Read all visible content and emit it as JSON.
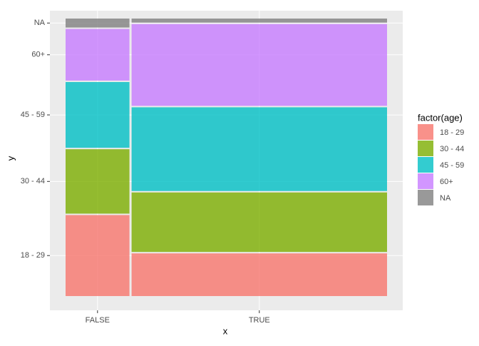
{
  "chart_data": {
    "type": "mosaic",
    "x_label": "x",
    "y_label": "y",
    "legend_title": "factor(age)",
    "categories": [
      "FALSE",
      "TRUE"
    ],
    "category_shares": [
      20,
      80
    ],
    "series": [
      {
        "name": "18 - 29",
        "color": "#F8766D",
        "values": [
          29.8,
          15.7
        ]
      },
      {
        "name": "30 - 44",
        "color": "#7CAE00",
        "values": [
          23.7,
          21.9
        ]
      },
      {
        "name": "45 - 59",
        "color": "#00BFC4",
        "values": [
          24.2,
          30.8
        ]
      },
      {
        "name": "60+",
        "color": "#C77CFF",
        "values": [
          19.0,
          30.1
        ]
      },
      {
        "name": "NA",
        "color": "#7F7F7F",
        "values": [
          3.3,
          1.5
        ]
      }
    ],
    "grid": true
  }
}
